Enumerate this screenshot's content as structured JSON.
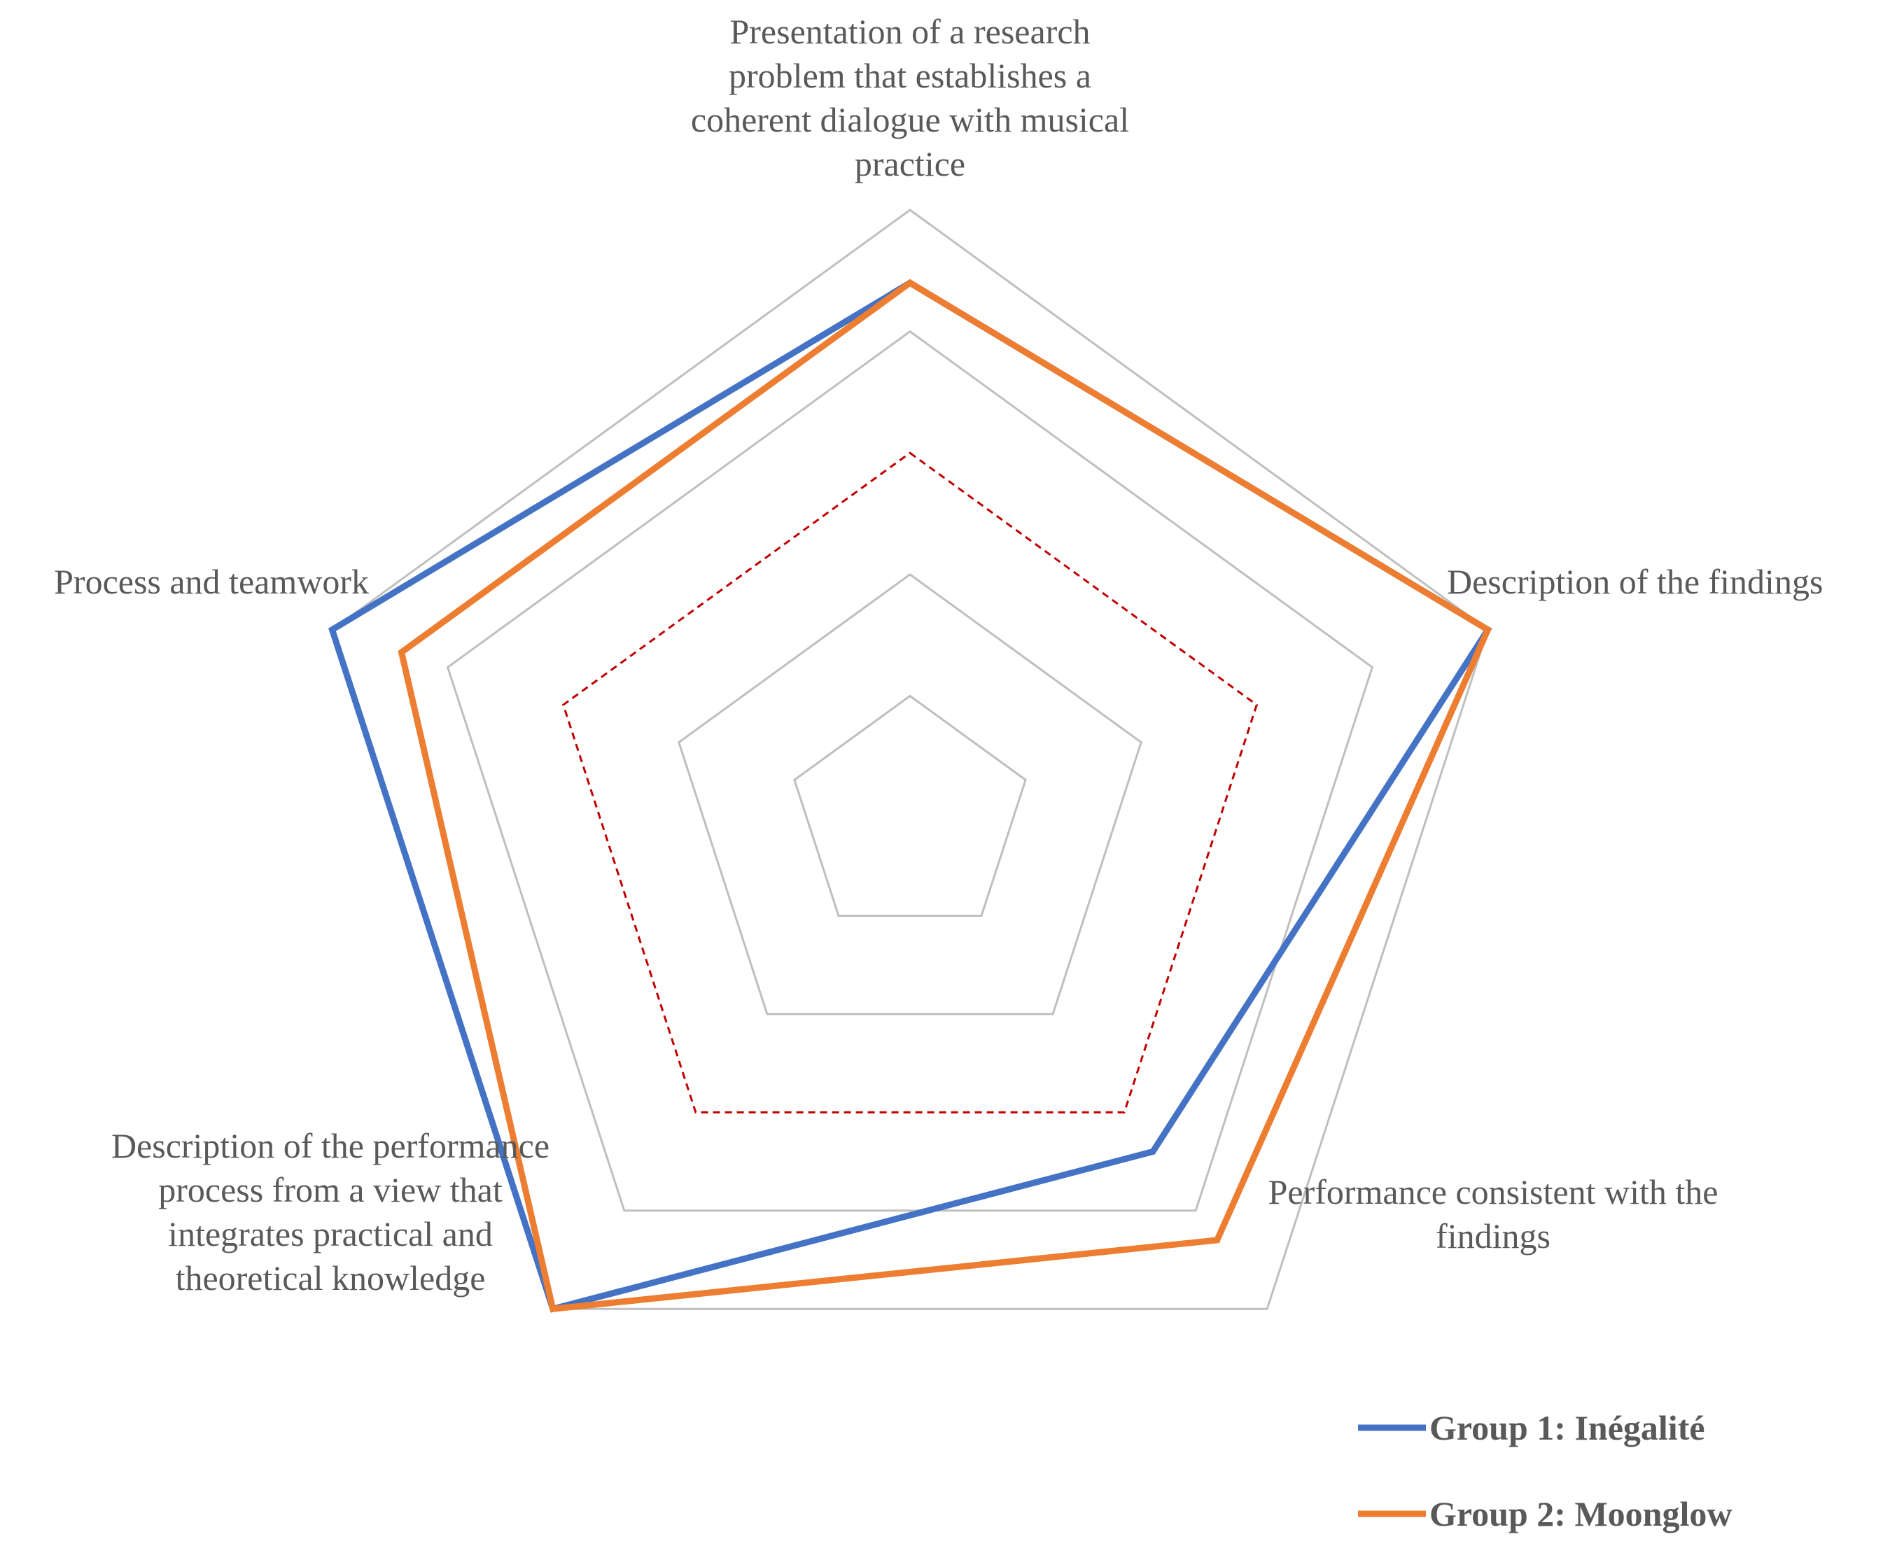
{
  "chart_data": {
    "type": "radar",
    "axes": [
      "Presentation of a research problem that establishes a coherent dialogue with musical practice",
      "Description of the findings",
      "Performance consistent with the findings",
      "Description of the performance process from a view that integrates practical and theoretical knowledge",
      "Process and teamwork"
    ],
    "axis_label_lines": [
      [
        "Presentation of a research",
        "problem that establishes a",
        "coherent dialogue with musical",
        "practice"
      ],
      [
        "Description of the findings"
      ],
      [
        "Performance consistent with the",
        "findings"
      ],
      [
        "Description of the performance",
        "process from a view that",
        "integrates practical and",
        "theoretical knowledge"
      ],
      [
        "Process and teamwork"
      ]
    ],
    "rlim": [
      0,
      5
    ],
    "grid_levels": [
      1,
      2,
      3,
      4,
      5
    ],
    "reference_level": 3,
    "grid_on": true,
    "series": [
      {
        "name": "Group 1: Inégalité",
        "color": "#4472C4",
        "values": [
          4.4,
          5,
          3.4,
          5,
          5
        ]
      },
      {
        "name": "Group 2: Moonglow",
        "color": "#ED7D31",
        "values": [
          4.4,
          5,
          4.3,
          5,
          4.4
        ]
      }
    ],
    "grid_color": "#BFBFBF",
    "reference_color": "#C00000",
    "legend_position": "bottom-right"
  }
}
